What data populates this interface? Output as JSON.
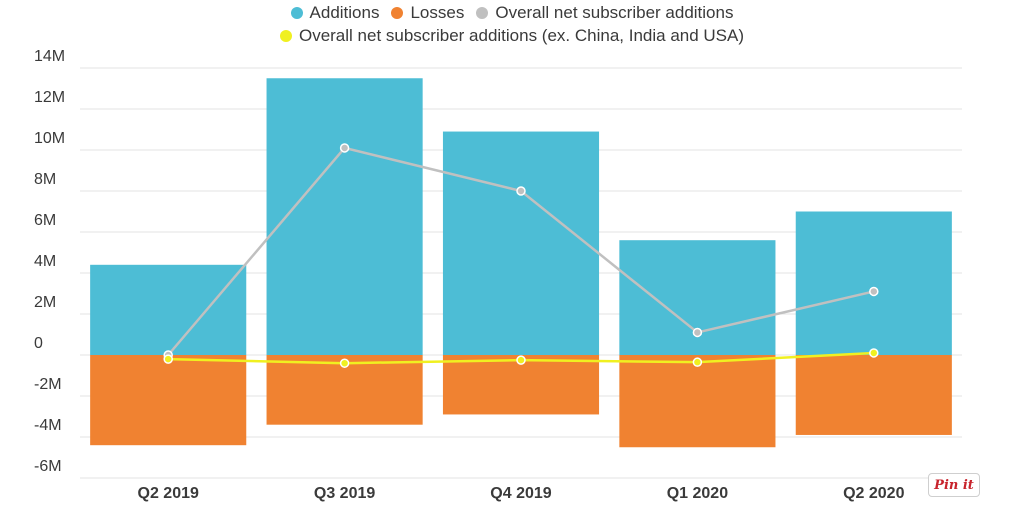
{
  "chart_data": {
    "type": "bar",
    "stacked": true,
    "categories": [
      "Q2 2019",
      "Q3 2019",
      "Q4 2019",
      "Q1 2020",
      "Q2 2020"
    ],
    "series": [
      {
        "name": "Additions",
        "type": "bar",
        "color": "#4dbdd5",
        "values": [
          4.4,
          13.5,
          10.9,
          5.6,
          7.0
        ]
      },
      {
        "name": "Losses",
        "type": "bar",
        "color": "#f08231",
        "values": [
          -4.4,
          -3.4,
          -2.9,
          -4.5,
          -3.9
        ]
      },
      {
        "name": "Overall net subscriber additions",
        "type": "line",
        "color": "#c0c0c0",
        "values": [
          0.0,
          10.1,
          8.0,
          1.1,
          3.1
        ]
      },
      {
        "name": "Overall net subscriber additions (ex. China, India and USA)",
        "type": "line",
        "color": "#f0f020",
        "values": [
          -0.2,
          -0.4,
          -0.25,
          -0.35,
          0.1
        ]
      }
    ],
    "yticks": [
      "14M",
      "12M",
      "10M",
      "8M",
      "6M",
      "4M",
      "2M",
      "0",
      "-2M",
      "-4M",
      "-6M"
    ],
    "ylim": [
      -6,
      14
    ],
    "grid": true,
    "legend": "top",
    "title": "",
    "xlabel": "",
    "ylabel": ""
  },
  "pin_button": {
    "label": "Pin it",
    "color": "#c8232c"
  }
}
